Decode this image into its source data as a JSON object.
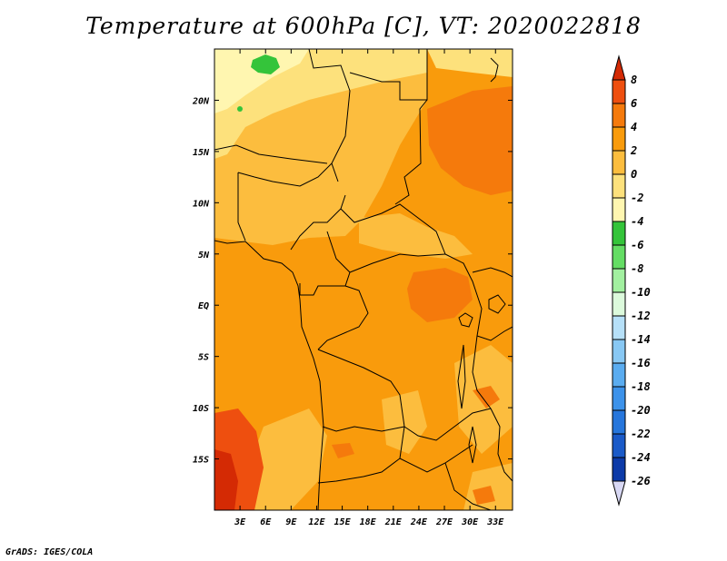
{
  "title": "Temperature at 600hPa [C], VT: 2020022818",
  "footer": "GrADS: IGES/COLA",
  "chart_data": {
    "type": "heatmap",
    "variable": "Temperature at 600hPa",
    "units": "C",
    "valid_time": "2020022818",
    "lon_range": [
      0,
      35
    ],
    "lat_range": [
      -20,
      25
    ],
    "x_ticks": [
      "3E",
      "6E",
      "9E",
      "12E",
      "15E",
      "18E",
      "21E",
      "24E",
      "27E",
      "30E",
      "33E"
    ],
    "x_tick_values": [
      3,
      6,
      9,
      12,
      15,
      18,
      21,
      24,
      27,
      30,
      33
    ],
    "y_ticks": [
      "20N",
      "15N",
      "10N",
      "5N",
      "EQ",
      "5S",
      "10S",
      "15S"
    ],
    "y_tick_values": [
      20,
      15,
      10,
      5,
      0,
      -5,
      -10,
      -15
    ],
    "colorbar": {
      "levels": [
        "8",
        "6",
        "4",
        "2",
        "0",
        "-2",
        "-4",
        "-6",
        "-8",
        "-10",
        "-12",
        "-14",
        "-16",
        "-18",
        "-20",
        "-22",
        "-24",
        "-26"
      ],
      "colors": [
        "#d42a04",
        "#ee4f0f",
        "#f57a0c",
        "#f99b0c",
        "#fcbd3e",
        "#fde17c",
        "#fff6b0",
        "#34c43a",
        "#64dd64",
        "#a2f0a0",
        "#dcfadc",
        "#b6e0f8",
        "#88c8f4",
        "#5aacf0",
        "#3c92ea",
        "#2676dc",
        "#1a5ac8",
        "#0c3aa8",
        "#0a1a80",
        "#d8d8f4"
      ]
    }
  }
}
